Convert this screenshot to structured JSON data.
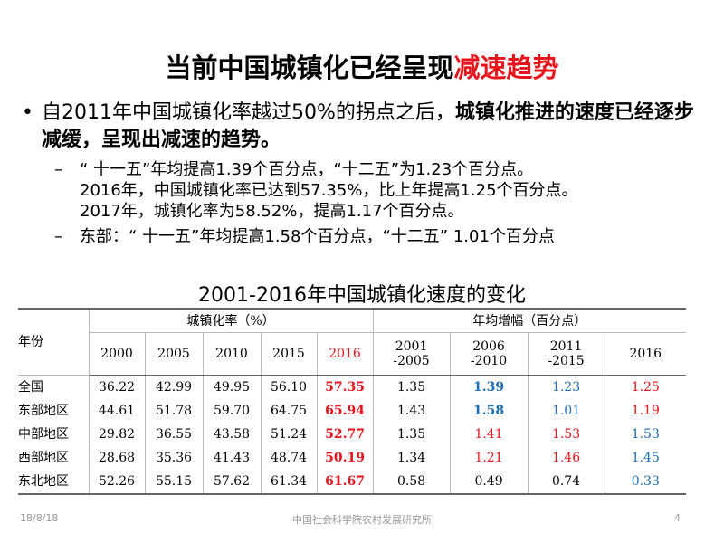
{
  "header": {
    "title": {
      "main": "当前中国城镇化已经呈现",
      "highlight": "减速趋势"
    }
  },
  "bullets": [
    {
      "normal": "自2011年中国城镇化率越过50%的拐点之后，",
      "bold": "城镇化推进的速度已经逐步减缓，呈现出减速的趋势。",
      "subs": [
        {
          "lines": [
            "“ 十一五”年均提高1.39个百分点，“十二五”为1.23个百分点。",
            "2016年，中国城镇化率已达到57.35%，比上年提高1.25个百分点。",
            "2017年，城镇化率为58.52%，提高1.17个百分点。"
          ]
        },
        {
          "lines": [
            "东部：“ 十一五”年均提高1.58个百分点，“十二五” 1.01个百分点"
          ]
        }
      ]
    }
  ],
  "table": {
    "title": "2001-2016年中国城镇化速度的变化",
    "corner": "年份",
    "group1": "城镇化率（%）",
    "group2": "年均增幅（百分点）",
    "columns": [
      [
        "2000"
      ],
      [
        "2005"
      ],
      [
        "2010"
      ],
      [
        "2015"
      ],
      [
        "2016"
      ],
      [
        "2001",
        "-2005"
      ],
      [
        "2006",
        "-2010"
      ],
      [
        "2011",
        "-2015"
      ],
      [
        "2016"
      ]
    ],
    "rows": [
      [
        "全国",
        "36.22",
        "42.99",
        "49.95",
        "56.10",
        "57.35",
        "1.35",
        "1.39",
        "1.23",
        "1.25"
      ],
      [
        "东部地区",
        "44.61",
        "51.78",
        "59.70",
        "64.75",
        "65.94",
        "1.43",
        "1.58",
        "1.01",
        "1.19"
      ],
      [
        "中部地区",
        "29.82",
        "36.55",
        "43.58",
        "51.24",
        "52.77",
        "1.35",
        "1.41",
        "1.53",
        "1.53"
      ],
      [
        "西部地区",
        "28.68",
        "35.36",
        "41.43",
        "48.74",
        "50.19",
        "1.34",
        "1.21",
        "1.46",
        "1.45"
      ],
      [
        "东北地区",
        "52.26",
        "55.15",
        "57.62",
        "61.34",
        "61.67",
        "0.58",
        "0.49",
        "0.74",
        "0.33"
      ]
    ]
  },
  "footer": {
    "date": "18/8/18",
    "org": "中国社会科学院农村发展研究所",
    "page": "4"
  }
}
